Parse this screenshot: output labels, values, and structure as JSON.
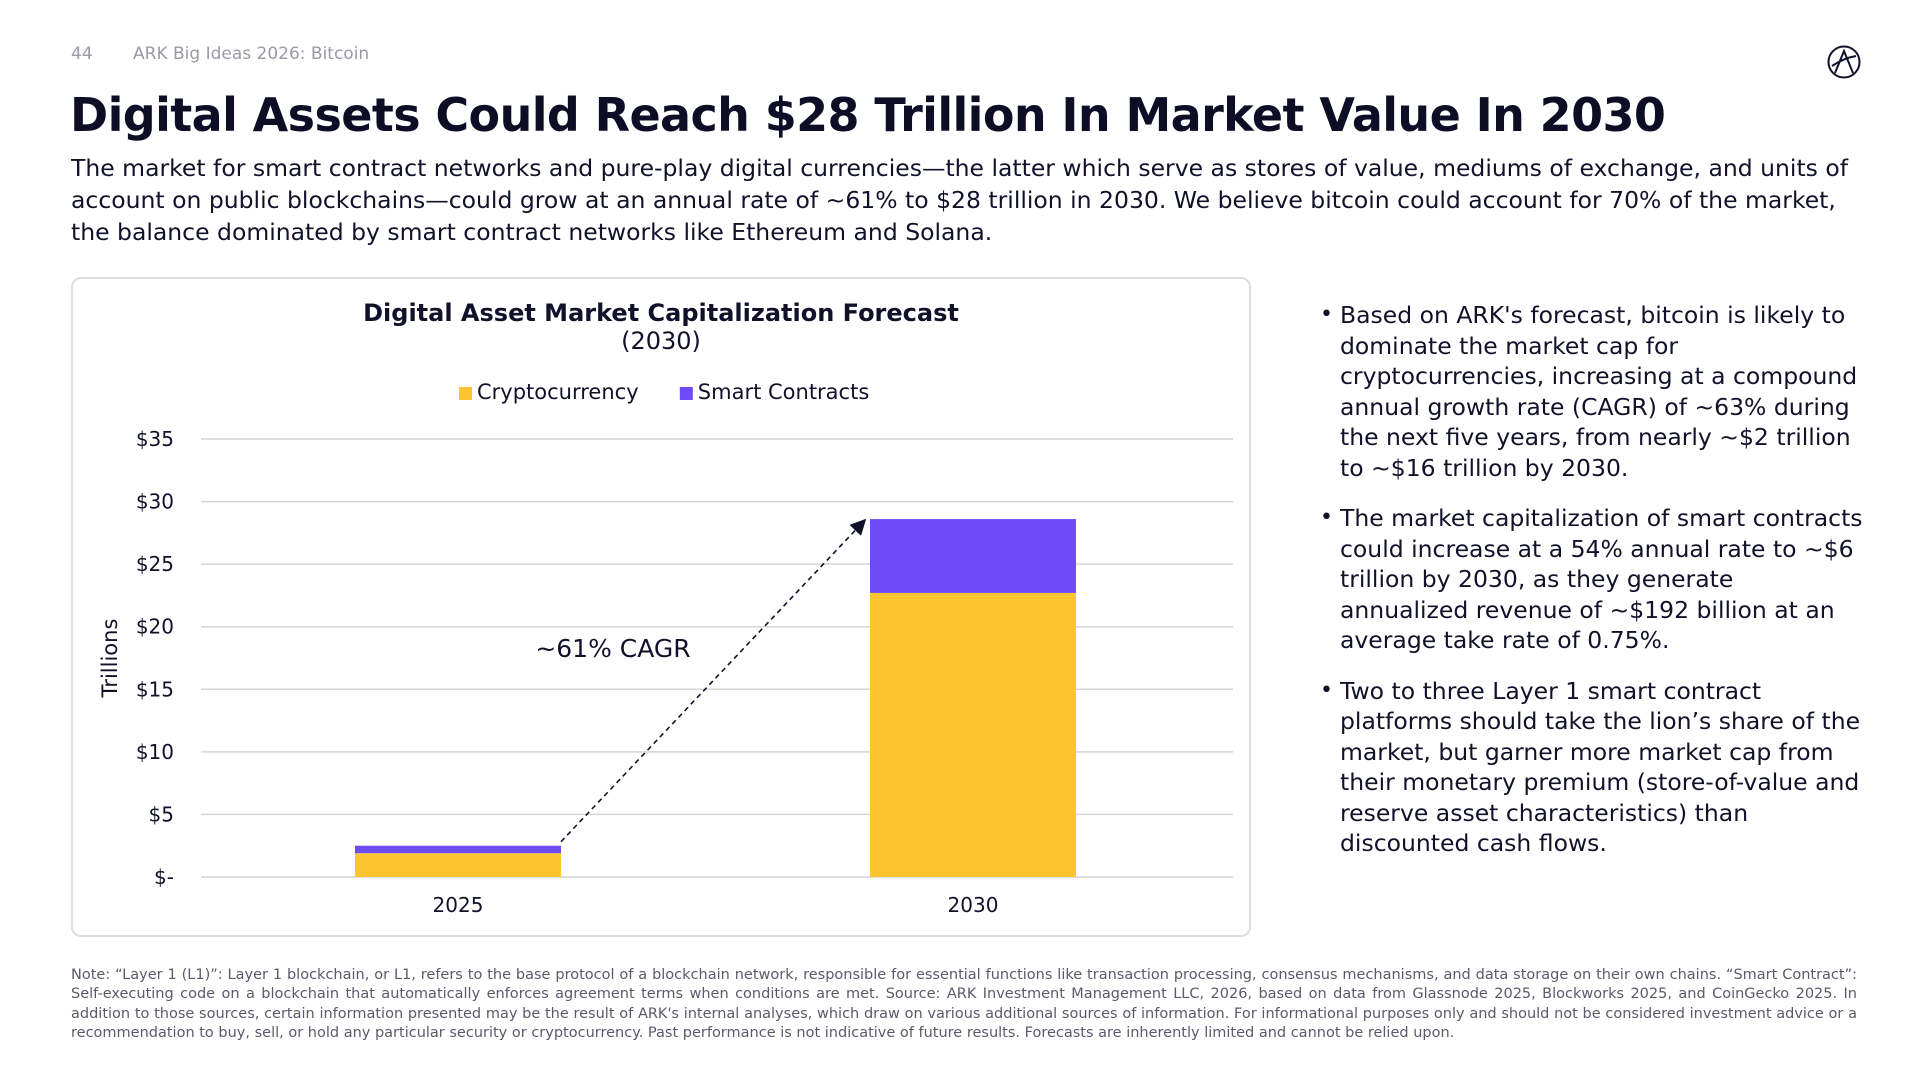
{
  "header": {
    "page_number": "44",
    "deck_title": "ARK Big Ideas 2026: Bitcoin",
    "logo_icon": "ark-logo-icon"
  },
  "title": "Digital Assets Could Reach $28 Trillion In Market Value In 2030",
  "intro": "The market for smart contract networks and pure-play digital currencies—the latter which serve as stores of value, mediums of exchange, and units of account on public blockchains—could grow at an annual rate of ~61% to $28 trillion in 2030. We believe bitcoin could account for 70% of the market, the balance dominated by smart contract networks like Ethereum and Solana.",
  "bullets": [
    "Based on ARK's forecast, bitcoin is likely to dominate the market cap for cryptocurrencies, increasing at a compound annual growth rate (CAGR) of ~63% during the next five years, from nearly ~$2 trillion to ~$16 trillion by 2030.",
    "The market capitalization of smart contracts could increase at a 54% annual rate to ~$6 trillion by 2030, as they generate annualized revenue of ~$192 billion at an average take rate of 0.75%.",
    "Two to three Layer 1 smart contract platforms should take the lion’s share of the market, but garner more market cap from their monetary premium (store-of-value and reserve asset characteristics) than discounted cash flows."
  ],
  "footnote": "Note: “Layer 1 (L1)”: Layer 1 blockchain, or L1, refers to the base protocol of a blockchain network, responsible for essential functions like transaction processing, consensus mechanisms, and data storage on their own chains. “Smart Contract”: Self-executing code on a blockchain that automatically enforces agreement terms when conditions are met. Source: ARK Investment Management LLC, 2026, based on data from Glassnode 2025, Blockworks 2025, and CoinGecko 2025. In addition to those sources, certain information presented may be the result of ARK's internal analyses, which draw on various additional sources of information. For informational purposes only and should not be considered investment advice or a recommendation to buy, sell, or hold any particular security or cryptocurrency. Past performance is not indicative of future results. Forecasts are inherently limited and cannot be relied upon.",
  "chart_data": {
    "type": "bar",
    "stacked": true,
    "title": "Digital Asset Market Capitalization Forecast",
    "subtitle": "(2030)",
    "categories": [
      "2025",
      "2030"
    ],
    "series": [
      {
        "name": "Cryptocurrency",
        "color": "#FFC52E",
        "values": [
          1.9,
          22.7
        ]
      },
      {
        "name": "Smart Contracts",
        "color": "#6E4BF5",
        "values": [
          0.6,
          5.9
        ]
      }
    ],
    "ylabel": "Trillions",
    "xlabel": "",
    "ylim": [
      0,
      35
    ],
    "yticks": [
      0,
      5,
      10,
      15,
      20,
      25,
      30,
      35
    ],
    "ytick_labels": [
      "$-",
      "$5",
      "$10",
      "$15",
      "$20",
      "$25",
      "$30",
      "$35"
    ],
    "annotation": "~61% CAGR",
    "legend_position": "top-center",
    "grid": true,
    "colors": {
      "grid": "#d4d4d9",
      "text": "#11112a",
      "arrow": "#11112a"
    }
  }
}
